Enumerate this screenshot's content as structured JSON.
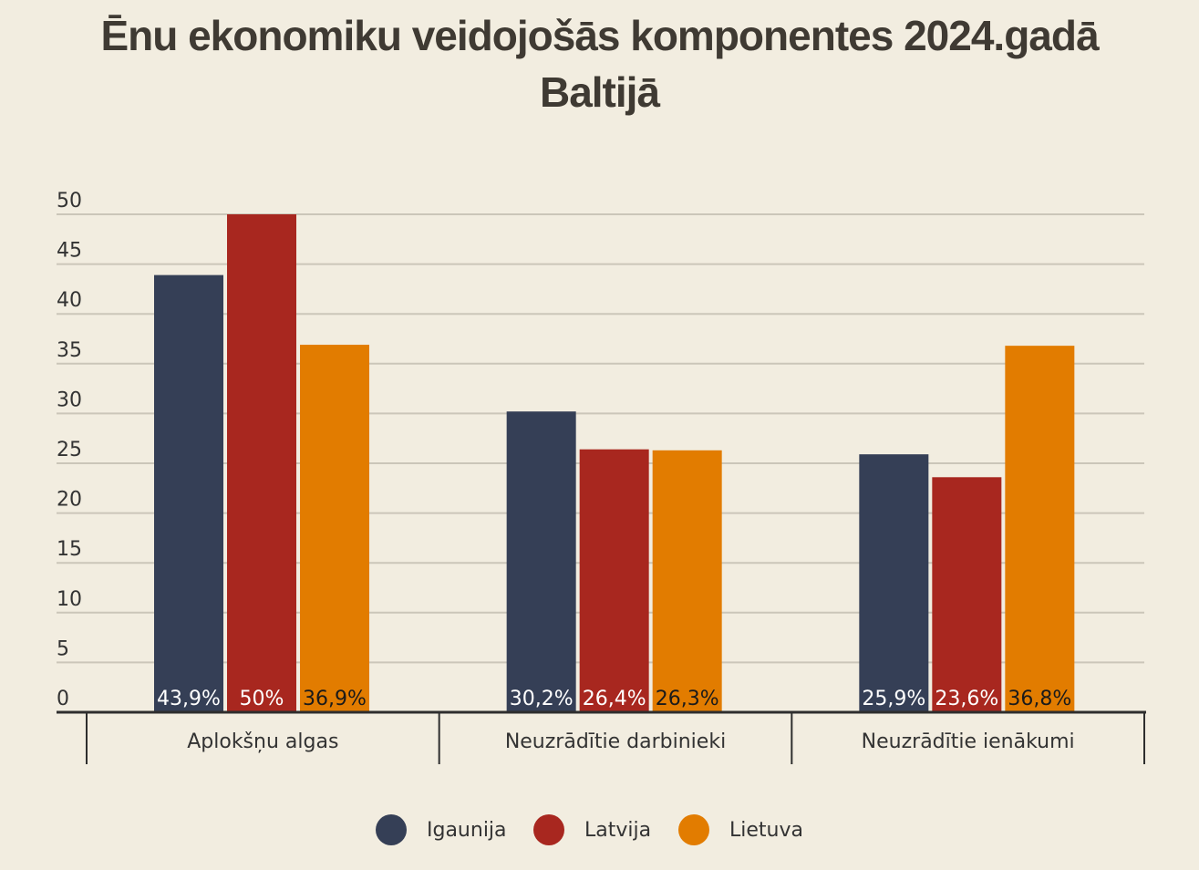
{
  "chart_data": {
    "type": "bar",
    "title": "Ēnu ekonomiku veidojošās komponentes 2024.gadā Baltijā",
    "title_lines": [
      "Ēnu ekonomiku veidojošās komponentes 2024.gadā",
      "Baltijā"
    ],
    "categories": [
      "Aplokšņu algas",
      "Neuzrādītie darbinieki",
      "Neuzrādītie ienākumi"
    ],
    "series": [
      {
        "name": "Igaunija",
        "color": "#353f56",
        "values": [
          43.9,
          30.2,
          25.9
        ],
        "labels": [
          "43,9%",
          "30,2%",
          "25,9%"
        ],
        "label_color": "#ffffff"
      },
      {
        "name": "Latvija",
        "color": "#a8271f",
        "values": [
          50,
          26.4,
          23.6
        ],
        "labels": [
          "50%",
          "26,4%",
          "23,6%"
        ],
        "label_color": "#ffffff"
      },
      {
        "name": "Lietuva",
        "color": "#e27c00",
        "values": [
          36.9,
          26.3,
          36.8
        ],
        "labels": [
          "36,9%",
          "26,3%",
          "36,8%"
        ],
        "label_color": "#1a1a1a"
      }
    ],
    "yticks": [
      "0",
      "5",
      "10",
      "15",
      "20",
      "25",
      "30",
      "35",
      "40",
      "45",
      "50"
    ],
    "ylim": [
      0,
      50
    ],
    "grid": true,
    "legend": "bottom"
  }
}
